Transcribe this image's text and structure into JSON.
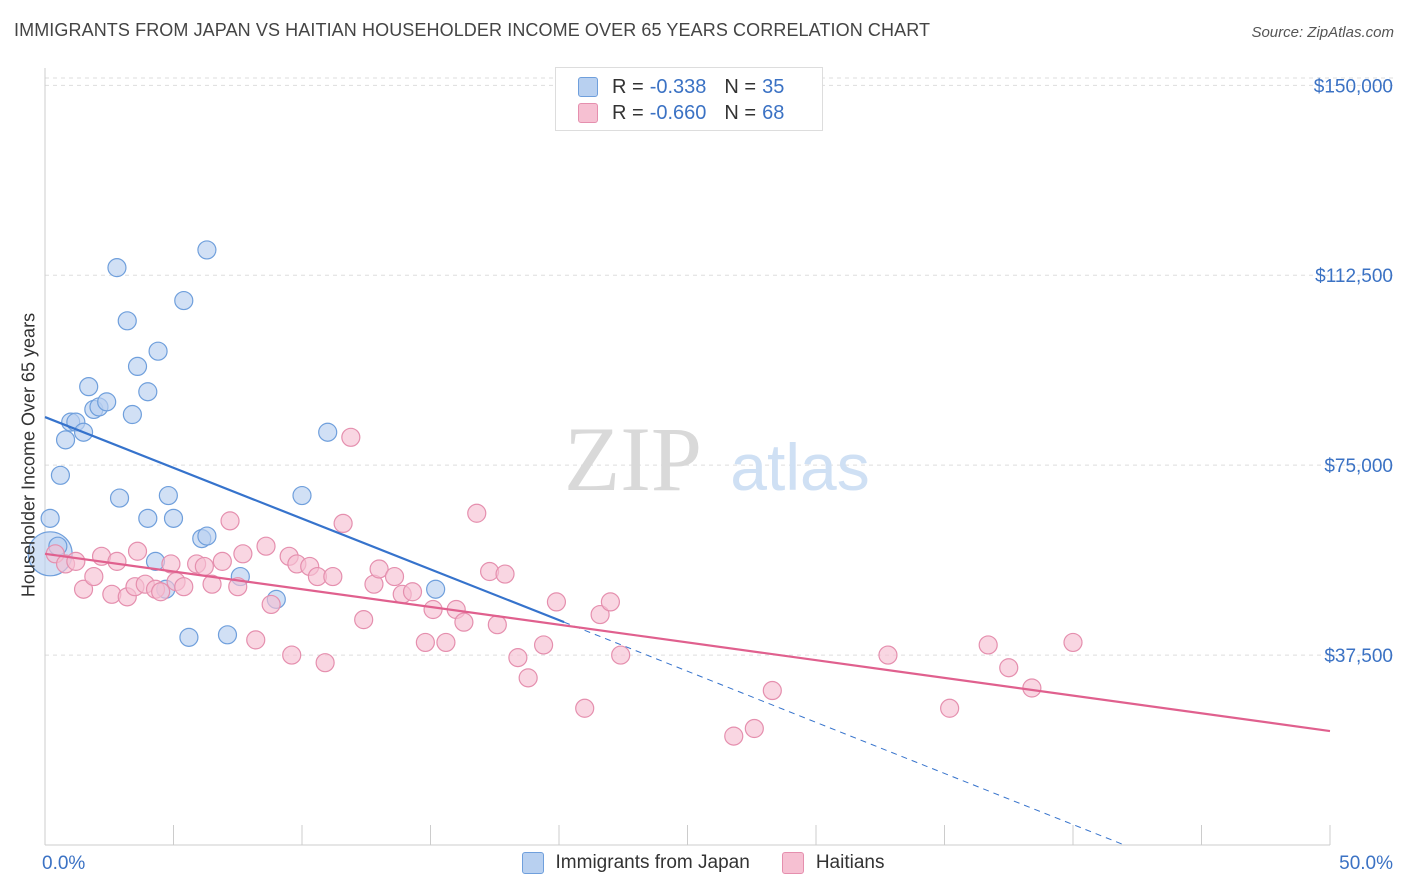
{
  "title": "IMMIGRANTS FROM JAPAN VS HAITIAN HOUSEHOLDER INCOME OVER 65 YEARS CORRELATION CHART",
  "source": "Source: ZipAtlas.com",
  "watermark": {
    "zip": "ZIP",
    "atlas": "atlas"
  },
  "legend_top": [
    {
      "r_label": "R =",
      "r_value": "-0.338",
      "n_label": "N =",
      "n_value": "35"
    },
    {
      "r_label": "R =",
      "r_value": "-0.660",
      "n_label": "N =",
      "n_value": "68"
    }
  ],
  "colors": {
    "japan_fill": "#b8d0f0",
    "japan_stroke": "#6f9fdc",
    "japan_line": "#3673cc",
    "haiti_fill": "#f6c0d2",
    "haiti_stroke": "#e58fae",
    "haiti_line": "#e0608e",
    "tick_label": "#3b72c4",
    "grid": "#dddddd"
  },
  "chart_data": {
    "type": "scatter",
    "title": "IMMIGRANTS FROM JAPAN VS HAITIAN HOUSEHOLDER INCOME OVER 65 YEARS CORRELATION CHART",
    "xlabel": "",
    "ylabel": "Householder Income Over 65 years",
    "xlim": [
      0,
      50
    ],
    "ylim": [
      0,
      155000
    ],
    "x_tick_labels": [
      "0.0%",
      "50.0%"
    ],
    "y_ticks": [
      37500,
      75000,
      112500,
      150000
    ],
    "y_tick_labels": [
      "$37,500",
      "$75,000",
      "$112,500",
      "$150,000"
    ],
    "grid": true,
    "legend_position": "bottom",
    "series": [
      {
        "name": "Immigrants from Japan",
        "points": [
          [
            0.2,
            57500,
            22
          ],
          [
            0.2,
            64500,
            10
          ],
          [
            0.6,
            73000,
            10
          ],
          [
            0.8,
            80000,
            10
          ],
          [
            1.0,
            83500,
            10
          ],
          [
            1.2,
            83500,
            10
          ],
          [
            1.5,
            81500,
            10
          ],
          [
            1.7,
            90500,
            10
          ],
          [
            1.9,
            86000,
            10
          ],
          [
            2.1,
            86500,
            10
          ],
          [
            2.4,
            87500,
            10
          ],
          [
            2.9,
            68500,
            10
          ],
          [
            2.8,
            114000,
            10
          ],
          [
            3.2,
            103500,
            10
          ],
          [
            3.4,
            85000,
            10
          ],
          [
            3.6,
            94500,
            10
          ],
          [
            4.0,
            89500,
            10
          ],
          [
            4.0,
            64500,
            10
          ],
          [
            4.3,
            56000,
            10
          ],
          [
            4.4,
            97500,
            10
          ],
          [
            4.7,
            50500,
            10
          ],
          [
            4.8,
            69000,
            10
          ],
          [
            5.0,
            64500,
            10
          ],
          [
            5.4,
            107500,
            10
          ],
          [
            5.6,
            41000,
            10
          ],
          [
            6.1,
            60500,
            10
          ],
          [
            6.3,
            61000,
            10
          ],
          [
            6.3,
            117500,
            10
          ],
          [
            7.1,
            41500,
            10
          ],
          [
            7.6,
            53000,
            10
          ],
          [
            9.0,
            48500,
            10
          ],
          [
            10.0,
            69000,
            10
          ],
          [
            11.0,
            81500,
            10
          ],
          [
            15.2,
            50500,
            10
          ],
          [
            0.5,
            59000,
            10
          ]
        ]
      },
      {
        "name": "Haitians",
        "points": [
          [
            0.4,
            57500,
            10
          ],
          [
            0.8,
            55500,
            10
          ],
          [
            1.2,
            56000,
            10
          ],
          [
            1.5,
            50500,
            10
          ],
          [
            1.9,
            53000,
            10
          ],
          [
            2.2,
            57000,
            10
          ],
          [
            2.6,
            49500,
            10
          ],
          [
            2.8,
            56000,
            10
          ],
          [
            3.2,
            49000,
            10
          ],
          [
            3.5,
            51000,
            10
          ],
          [
            3.6,
            58000,
            10
          ],
          [
            3.9,
            51500,
            10
          ],
          [
            4.3,
            50500,
            10
          ],
          [
            4.5,
            50000,
            10
          ],
          [
            4.9,
            55500,
            10
          ],
          [
            5.1,
            52000,
            10
          ],
          [
            5.4,
            51000,
            10
          ],
          [
            5.9,
            55500,
            10
          ],
          [
            6.2,
            55000,
            10
          ],
          [
            6.5,
            51500,
            10
          ],
          [
            6.9,
            56000,
            10
          ],
          [
            7.2,
            64000,
            10
          ],
          [
            7.5,
            51000,
            10
          ],
          [
            7.7,
            57500,
            10
          ],
          [
            8.2,
            40500,
            10
          ],
          [
            8.6,
            59000,
            10
          ],
          [
            8.8,
            47500,
            10
          ],
          [
            9.5,
            57000,
            10
          ],
          [
            9.6,
            37500,
            10
          ],
          [
            9.8,
            55500,
            10
          ],
          [
            10.3,
            55000,
            10
          ],
          [
            10.6,
            53000,
            10
          ],
          [
            10.9,
            36000,
            10
          ],
          [
            11.2,
            53000,
            10
          ],
          [
            11.6,
            63500,
            10
          ],
          [
            11.9,
            80500,
            10
          ],
          [
            12.4,
            44500,
            10
          ],
          [
            12.8,
            51500,
            10
          ],
          [
            13.0,
            54500,
            10
          ],
          [
            13.6,
            53000,
            10
          ],
          [
            13.9,
            49500,
            10
          ],
          [
            14.3,
            50000,
            10
          ],
          [
            14.8,
            40000,
            10
          ],
          [
            15.1,
            46500,
            10
          ],
          [
            15.6,
            40000,
            10
          ],
          [
            16.0,
            46500,
            10
          ],
          [
            16.3,
            44000,
            10
          ],
          [
            16.8,
            65500,
            10
          ],
          [
            17.3,
            54000,
            10
          ],
          [
            17.6,
            43500,
            10
          ],
          [
            17.9,
            53500,
            10
          ],
          [
            18.4,
            37000,
            10
          ],
          [
            18.8,
            33000,
            10
          ],
          [
            19.4,
            39500,
            10
          ],
          [
            19.9,
            48000,
            10
          ],
          [
            21.0,
            27000,
            10
          ],
          [
            21.6,
            45500,
            10
          ],
          [
            22.0,
            48000,
            10
          ],
          [
            22.4,
            37500,
            10
          ],
          [
            26.8,
            21500,
            10
          ],
          [
            27.6,
            23000,
            10
          ],
          [
            28.3,
            30500,
            10
          ],
          [
            32.8,
            37500,
            10
          ],
          [
            35.2,
            27000,
            10
          ],
          [
            36.7,
            39500,
            10
          ],
          [
            37.5,
            35000,
            10
          ],
          [
            38.4,
            31000,
            10
          ],
          [
            40.0,
            40000,
            10
          ]
        ]
      }
    ],
    "trendlines": [
      {
        "series": "Immigrants from Japan",
        "x": [
          0,
          20.2
        ],
        "y": [
          84500,
          44000
        ],
        "dashed_extension_to": [
          42,
          0
        ]
      },
      {
        "series": "Haitians",
        "x": [
          0,
          50
        ],
        "y": [
          57500,
          22500
        ]
      }
    ]
  }
}
